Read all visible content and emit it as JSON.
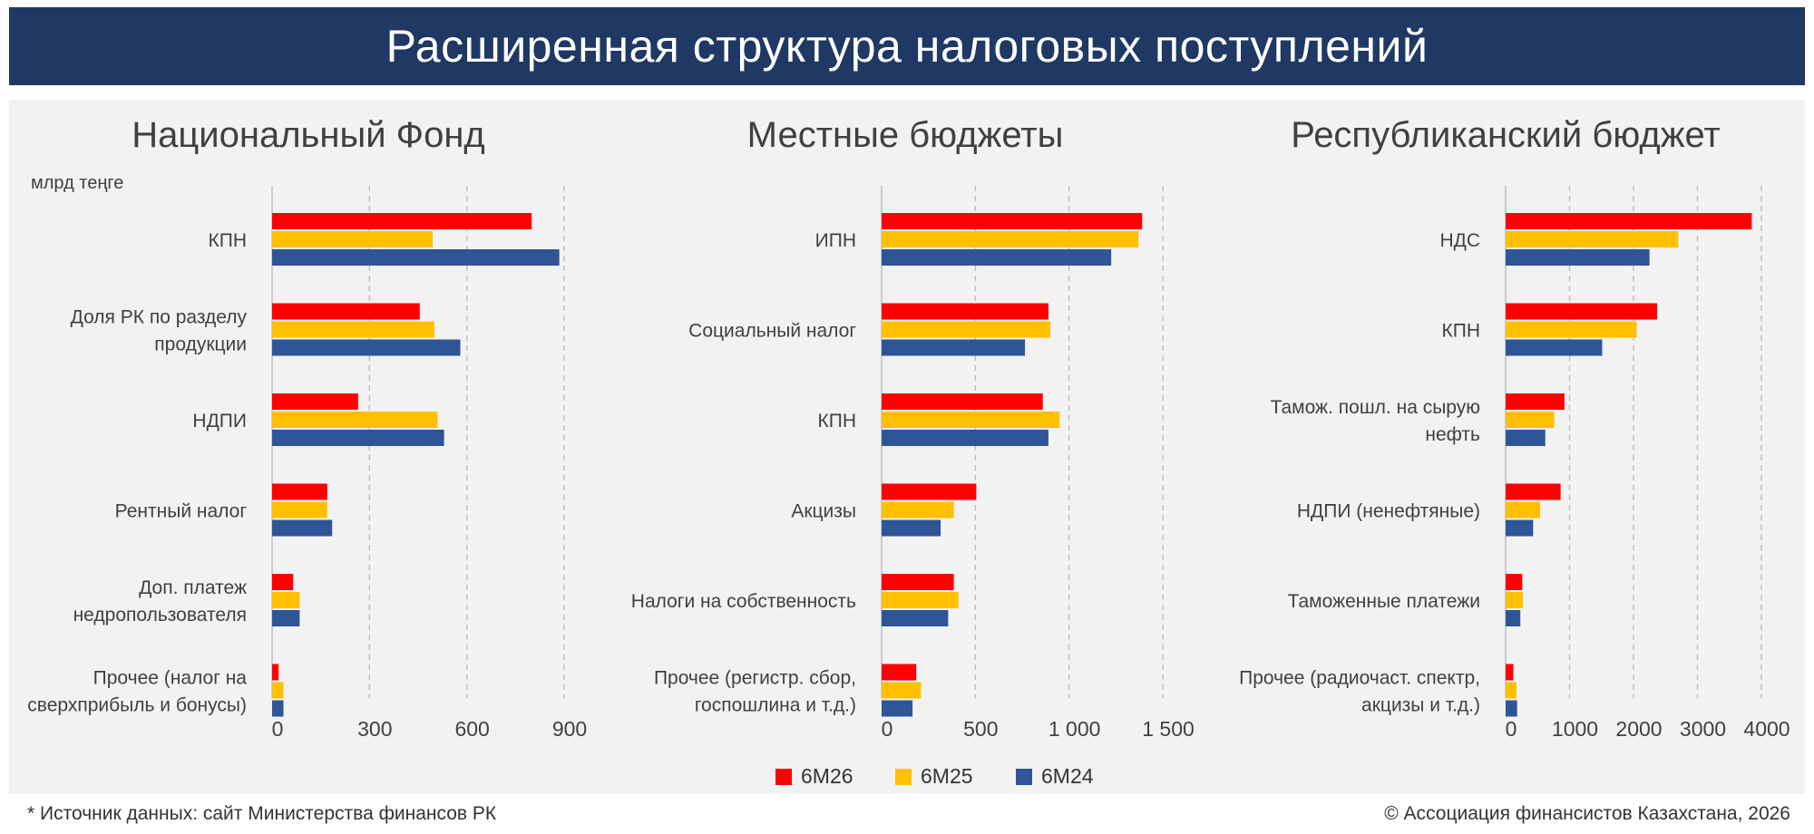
{
  "header": {
    "title": "Расширенная структура налоговых поступлений"
  },
  "colors": {
    "title_bg": "#1f3864",
    "panel_bg": "#f2f2f2",
    "6M26": "#ff0000",
    "6M25": "#ffc000",
    "6M24": "#2f5597"
  },
  "legend": {
    "items": [
      {
        "label": "6M26",
        "color": "#ff0000"
      },
      {
        "label": "6M25",
        "color": "#ffc000"
      },
      {
        "label": "6M24",
        "color": "#2f5597"
      }
    ]
  },
  "footer": {
    "source": "* Источник данных: сайт Министерства финансов РК",
    "copyright": "© Ассоциация финансистов Казахстана, 2026"
  },
  "chart_data": [
    {
      "type": "bar",
      "orientation": "horizontal",
      "title": "Национальный Фонд",
      "unit_label": "млрд теңге",
      "categories": [
        "КПН",
        "Доля РК по разделу продукции",
        "НДПИ",
        "Рентный налог",
        "Доп. платеж недропользователя",
        "Прочее (налог на сверхприбыль и бонусы)"
      ],
      "category_lines": [
        [
          "КПН"
        ],
        [
          "Доля РК по разделу",
          "продукции"
        ],
        [
          "НДПИ"
        ],
        [
          "Рентный налог"
        ],
        [
          "Доп. платеж",
          "недропользователя"
        ],
        [
          "Прочее (налог на",
          "сверхприбыль и бонусы)"
        ]
      ],
      "series": [
        {
          "name": "6M26",
          "values": [
            800,
            455,
            265,
            170,
            65,
            20
          ]
        },
        {
          "name": "6M25",
          "values": [
            495,
            500,
            510,
            170,
            85,
            35
          ]
        },
        {
          "name": "6M24",
          "values": [
            885,
            580,
            530,
            185,
            85,
            35
          ]
        }
      ],
      "xlim": [
        0,
        900
      ],
      "ticks": [
        0,
        300,
        600,
        900
      ],
      "tick_labels": [
        "0",
        "300",
        "600",
        "900"
      ],
      "grid": "vertical dashed"
    },
    {
      "type": "bar",
      "orientation": "horizontal",
      "title": "Местные бюджеты",
      "categories": [
        "ИПН",
        "Социальный налог",
        "КПН",
        "Акцизы",
        "Налоги на собственность",
        "Прочее (регистр. сбор, госпошлина и т.д.)"
      ],
      "category_lines": [
        [
          "ИПН"
        ],
        [
          "Социальный налог"
        ],
        [
          "КПН"
        ],
        [
          "Акцизы"
        ],
        [
          "Налоги на собственность"
        ],
        [
          "Прочее (регистр. сбор,",
          "госпошлина и т.д.)"
        ]
      ],
      "series": [
        {
          "name": "6M26",
          "values": [
            1390,
            890,
            860,
            505,
            385,
            185
          ]
        },
        {
          "name": "6M25",
          "values": [
            1370,
            900,
            950,
            385,
            410,
            210
          ]
        },
        {
          "name": "6M24",
          "values": [
            1225,
            765,
            890,
            315,
            355,
            165
          ]
        }
      ],
      "xlim": [
        0,
        1500
      ],
      "ticks": [
        0,
        500,
        1000,
        1500
      ],
      "tick_labels": [
        "0",
        "500",
        "1 000",
        "1 500"
      ],
      "grid": "vertical dashed"
    },
    {
      "type": "bar",
      "orientation": "horizontal",
      "title": "Республиканский бюджет",
      "categories": [
        "НДС",
        "КПН",
        "Тамож. пошл. на сырую нефть",
        "НДПИ (ненефтяные)",
        "Таможенные платежи",
        "Прочее (радиочаст. спектр, акцизы и т.д.)"
      ],
      "category_lines": [
        [
          "НДС"
        ],
        [
          "КПН"
        ],
        [
          "Тамож. пошл. на сырую",
          "нефть"
        ],
        [
          "НДПИ (ненефтяные)"
        ],
        [
          "Таможенные платежи"
        ],
        [
          "Прочее (радиочаст. спектр,",
          "акцизы и т.д.)"
        ]
      ],
      "series": [
        {
          "name": "6M26",
          "values": [
            3850,
            2370,
            920,
            860,
            260,
            120
          ]
        },
        {
          "name": "6M25",
          "values": [
            2700,
            2050,
            760,
            540,
            270,
            170
          ]
        },
        {
          "name": "6M24",
          "values": [
            2250,
            1510,
            620,
            430,
            230,
            180
          ]
        }
      ],
      "xlim": [
        0,
        4000
      ],
      "ticks": [
        0,
        1000,
        2000,
        3000,
        4000
      ],
      "tick_labels": [
        "0",
        "1000",
        "2000",
        "3000",
        "4000"
      ],
      "grid": "vertical dashed"
    }
  ]
}
